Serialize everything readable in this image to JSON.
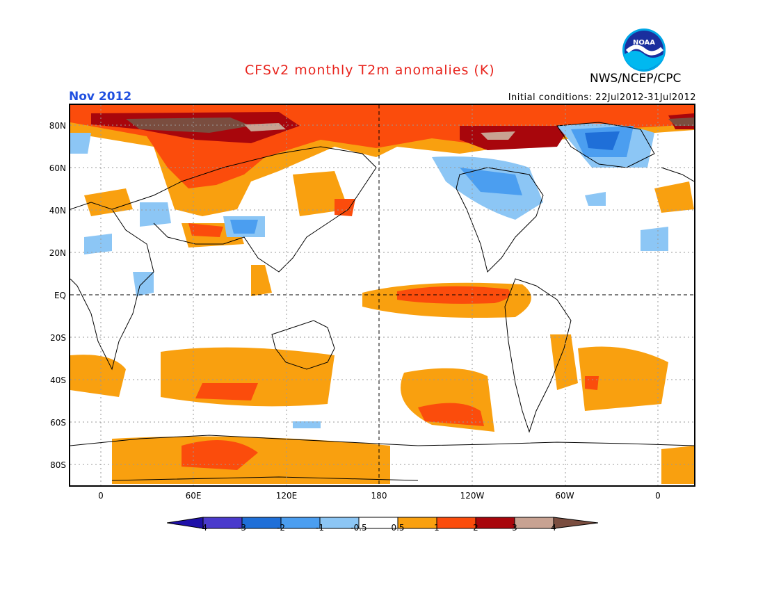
{
  "header": {
    "title": "CFSv2 monthly T2m anomalies (K)",
    "title_color": "#e8231c",
    "org": "NWS/NCEP/CPC",
    "logo_text": "NOAA",
    "month": "Nov 2012",
    "month_color": "#2050e0",
    "initial_conditions": "Initial conditions: 22Jul2012-31Jul2012"
  },
  "map": {
    "lat_labels": [
      "80N",
      "60N",
      "40N",
      "20N",
      "EQ",
      "20S",
      "40S",
      "60S",
      "80S"
    ],
    "lon_labels": [
      "0",
      "60E",
      "120E",
      "180",
      "120W",
      "60W",
      "0"
    ]
  },
  "colorbar": {
    "labels": [
      "-4",
      "-3",
      "-2",
      "-1",
      "-0.5",
      "0.5",
      "1",
      "2",
      "3",
      "4"
    ],
    "colors": [
      "#1e10a8",
      "#4a3acc",
      "#1f6fd8",
      "#4b9ef0",
      "#8cc6f5",
      "#ffffff",
      "#f9a00f",
      "#fb4c0c",
      "#a8060c",
      "#c8a292",
      "#7a4d3f"
    ]
  }
}
